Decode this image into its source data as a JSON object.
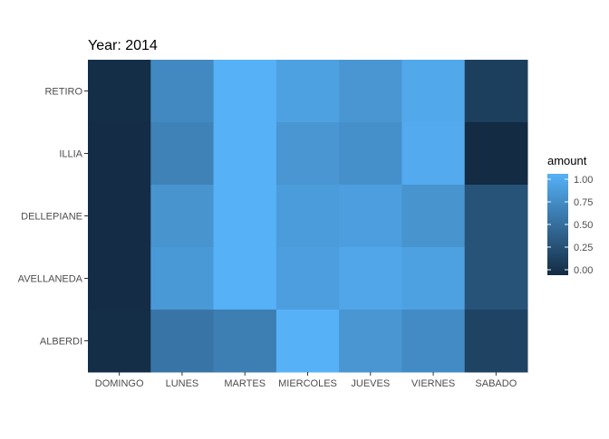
{
  "chart_data": {
    "type": "heatmap",
    "title": "Year: 2014",
    "xlabel": "",
    "ylabel": "",
    "x_categories": [
      "DOMINGO",
      "LUNES",
      "MARTES",
      "MIERCOLES",
      "JUEVES",
      "VIERNES",
      "SABADO"
    ],
    "y_categories": [
      "RETIRO",
      "ILLIA",
      "DELLEPIANE",
      "AVELLANEDA",
      "ALBERDI"
    ],
    "values": [
      [
        0.02,
        0.7,
        1.0,
        0.88,
        0.8,
        0.93,
        0.15
      ],
      [
        0.01,
        0.65,
        1.0,
        0.8,
        0.75,
        0.95,
        0.0
      ],
      [
        0.01,
        0.78,
        1.0,
        0.84,
        0.86,
        0.78,
        0.3
      ],
      [
        0.01,
        0.82,
        1.0,
        0.86,
        0.92,
        0.88,
        0.3
      ],
      [
        0.02,
        0.55,
        0.62,
        1.0,
        0.8,
        0.72,
        0.18
      ]
    ],
    "legend": {
      "title": "amount",
      "ticks": [
        "0.00",
        "0.25",
        "0.50",
        "0.75",
        "1.00"
      ],
      "tick_values": [
        0,
        0.25,
        0.5,
        0.75,
        1.0
      ],
      "placement": "right"
    },
    "colorscale": {
      "low": "#132B43",
      "high": "#56B1F7"
    },
    "grid": false
  }
}
